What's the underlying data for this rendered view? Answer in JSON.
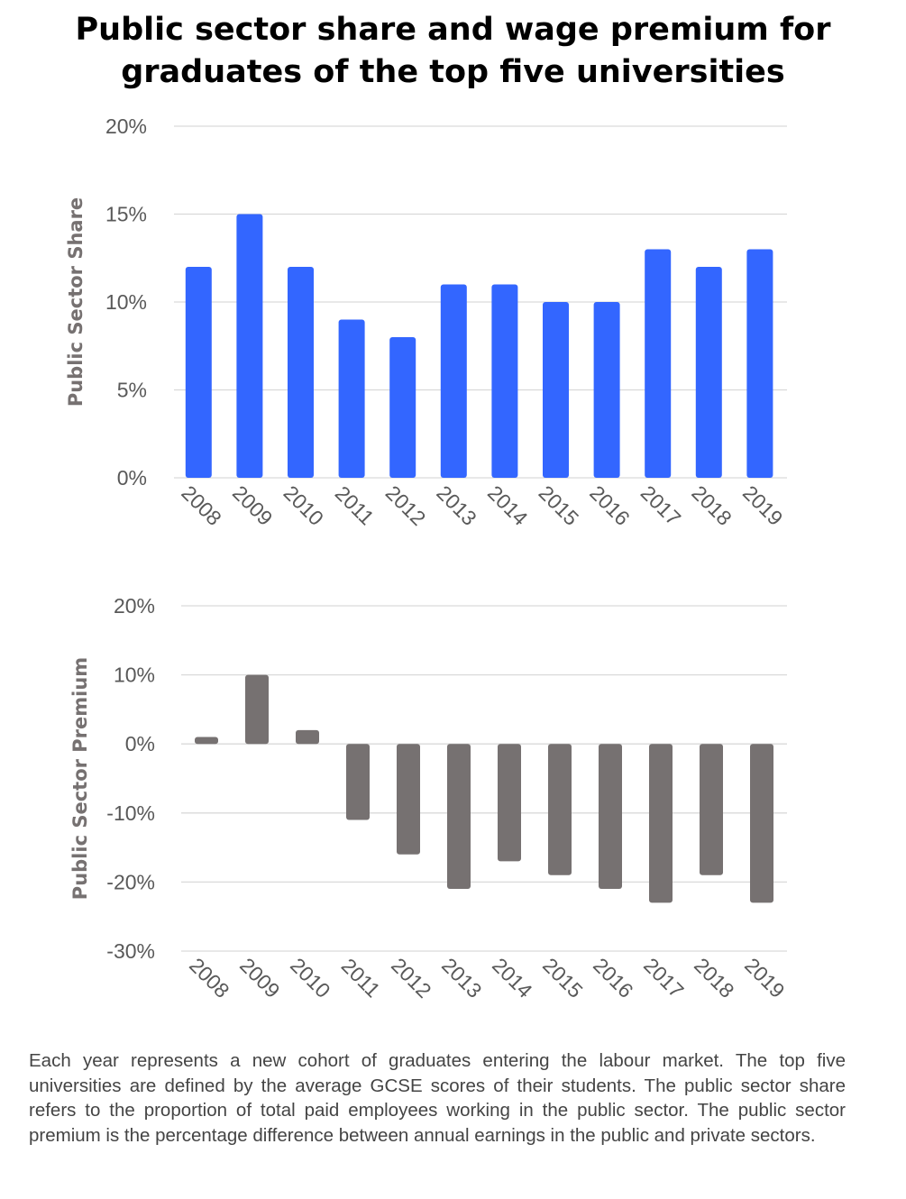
{
  "title_lines": [
    "Public sector share and wage premium for",
    "graduates of the top five universities"
  ],
  "colors": {
    "share_bar": "#3366ff",
    "premium_bar": "#767171",
    "grid": "#d9d9d9",
    "tick_text": "#595959",
    "axis_title": "#767171"
  },
  "chart_data": [
    {
      "type": "bar",
      "categories": [
        "2008",
        "2009",
        "2010",
        "2011",
        "2012",
        "2013",
        "2014",
        "2015",
        "2016",
        "2017",
        "2018",
        "2019"
      ],
      "values": [
        12,
        15,
        12,
        9,
        8,
        11,
        11,
        10,
        10,
        13,
        12,
        13
      ],
      "unit": "%",
      "ylabel": "Public Sector Share",
      "ylim": [
        0,
        20
      ],
      "yticks": [
        0,
        5,
        10,
        15,
        20
      ],
      "ytick_labels": [
        "0%",
        "5%",
        "10%",
        "15%",
        "20%"
      ],
      "grid": true,
      "xlabel": ""
    },
    {
      "type": "bar",
      "categories": [
        "2008",
        "2009",
        "2010",
        "2011",
        "2012",
        "2013",
        "2014",
        "2015",
        "2016",
        "2017",
        "2018",
        "2019"
      ],
      "values": [
        1,
        10,
        2,
        -11,
        -16,
        -21,
        -17,
        -19,
        -21,
        -23,
        -19,
        -23
      ],
      "unit": "%",
      "ylabel": "Public Sector Premium",
      "ylim": [
        -30,
        20
      ],
      "yticks": [
        -30,
        -20,
        -10,
        0,
        10,
        20
      ],
      "ytick_labels": [
        "-30%",
        "-20%",
        "-10%",
        "0%",
        "10%",
        "20%"
      ],
      "grid": true,
      "xlabel": ""
    }
  ],
  "caption": "Each year represents a new cohort of graduates entering the labour market. The top five universities are defined by the average GCSE scores of their students. The public sector share refers to the proportion of total paid employees working in the public sector. The public sector premium is the percentage difference between annual earnings in the public and private sectors."
}
